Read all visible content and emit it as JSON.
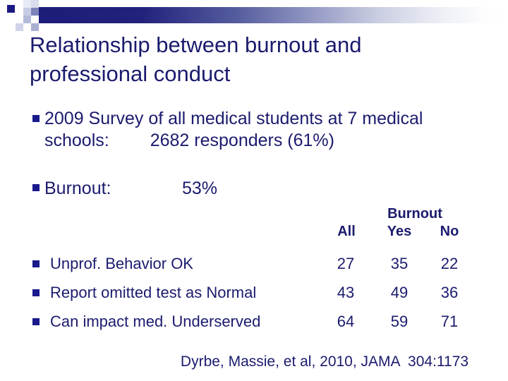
{
  "colors": {
    "text_navy": "#1b1b6e",
    "bullet_navy": "#1a1a8c",
    "bar_navy": "#1d1d7a",
    "background": "#ffffff"
  },
  "title": {
    "line1": "Relationship between burnout and",
    "line2": "professional conduct"
  },
  "bullets": {
    "survey": {
      "line1": "2009 Survey of all medical students at 7 medical",
      "line2_label": "schools:",
      "line2_value": "2682 responders (61%)"
    },
    "burnout": {
      "label": "Burnout:",
      "value": "53%"
    }
  },
  "table": {
    "group_header": "Burnout",
    "columns": {
      "all": "All",
      "yes": "Yes",
      "no": "No"
    },
    "rows": [
      {
        "label": "Unprof. Behavior OK",
        "all": "27",
        "yes": "35",
        "no": "22"
      },
      {
        "label": "Report omitted test as Normal",
        "all": "43",
        "yes": "49",
        "no": "36"
      },
      {
        "label": "Can impact med. Underserved",
        "all": "64",
        "yes": "59",
        "no": "71"
      }
    ]
  },
  "footer": {
    "citation": "Dyrbe, Massie, et al, 2010, JAMA  304:1173"
  }
}
